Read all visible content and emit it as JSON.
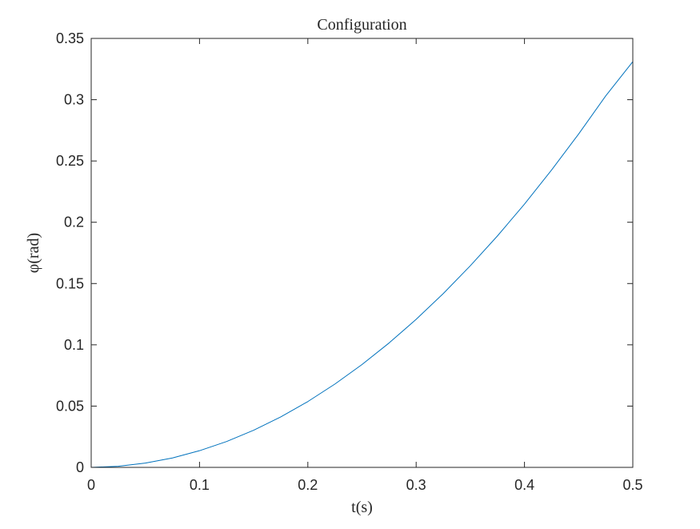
{
  "chart_data": {
    "type": "line",
    "title": "Configuration",
    "xlabel": "t(s)",
    "ylabel": "φ(rad)",
    "xlim": [
      0,
      0.5
    ],
    "ylim": [
      0,
      0.35
    ],
    "xticks": [
      0,
      0.1,
      0.2,
      0.3,
      0.4,
      0.5
    ],
    "xtick_labels": [
      "0",
      "0.1",
      "0.2",
      "0.3",
      "0.4",
      "0.5"
    ],
    "yticks": [
      0,
      0.05,
      0.1,
      0.15,
      0.2,
      0.25,
      0.3,
      0.35
    ],
    "ytick_labels": [
      "0",
      "0.05",
      "0.1",
      "0.15",
      "0.2",
      "0.25",
      "0.3",
      "0.35"
    ],
    "grid": false,
    "box": true,
    "series": [
      {
        "name": "phi",
        "color": "#0072BD",
        "x": [
          0,
          0.025,
          0.05,
          0.075,
          0.1,
          0.125,
          0.15,
          0.175,
          0.2,
          0.225,
          0.25,
          0.275,
          0.3,
          0.325,
          0.35,
          0.375,
          0.4,
          0.425,
          0.45,
          0.475,
          0.5
        ],
        "y": [
          0,
          0.0009,
          0.0035,
          0.0077,
          0.0136,
          0.0211,
          0.0303,
          0.0412,
          0.0537,
          0.068,
          0.0839,
          0.1015,
          0.1208,
          0.1418,
          0.1645,
          0.1888,
          0.2148,
          0.2426,
          0.272,
          0.3031,
          0.331
        ]
      }
    ]
  }
}
